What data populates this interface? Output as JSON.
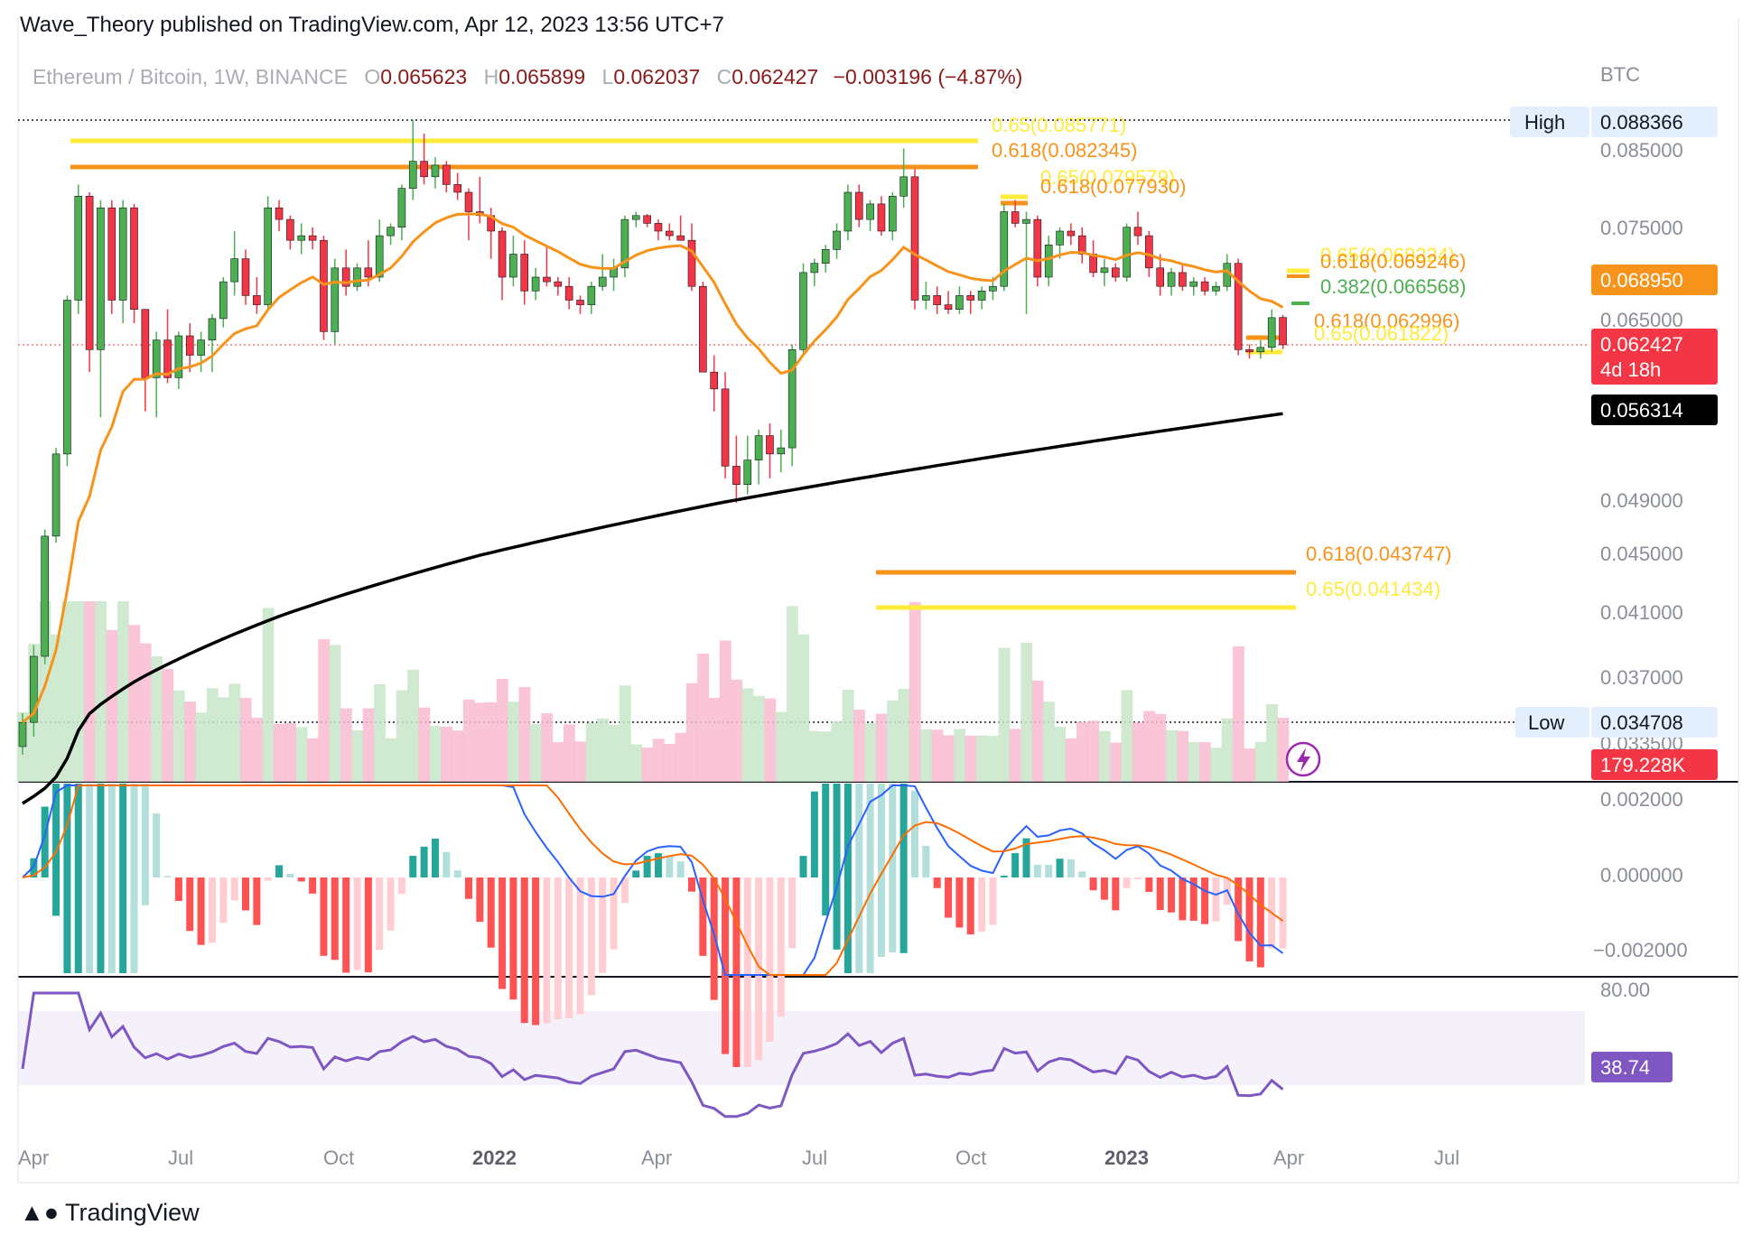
{
  "header": {
    "published": "Wave_Theory published on TradingView.com, Apr 12, 2023 13:56 UTC+7"
  },
  "legend": {
    "symbol": "Ethereum / Bitcoin, 1W, BINANCE",
    "o_label": "O",
    "o_value": "0.065623",
    "h_label": "H",
    "h_value": "0.065899",
    "l_label": "L",
    "l_value": "0.062037",
    "c_label": "C",
    "c_value": "0.062427",
    "change": "−0.003196 (−4.87%)"
  },
  "brand": {
    "name": "TradingView"
  },
  "colors": {
    "up": "#26a69a",
    "down": "#ef5350",
    "candle_up": "#4caf50",
    "candle_down": "#f23645",
    "ema": "#f7931a",
    "sma200": "#000000",
    "fib_gold": "#ffeb3b",
    "fib_orange": "#f7931a",
    "rsi": "#7e57c2",
    "macd": "#2962ff",
    "signal": "#ff6d00"
  },
  "chart_data": {
    "type": "candlestick",
    "title": "Ethereum / Bitcoin, 1W, BINANCE",
    "currency_label": "BTC",
    "price_axis_ticks": [
      "0.085000",
      "0.075000",
      "0.065000",
      "0.049000",
      "0.045000",
      "0.041000",
      "0.037000",
      "0.033500"
    ],
    "time_axis_labels": [
      {
        "label": "Apr",
        "bold": false
      },
      {
        "label": "Jul",
        "bold": false
      },
      {
        "label": "Oct",
        "bold": false
      },
      {
        "label": "2022",
        "bold": true
      },
      {
        "label": "Apr",
        "bold": false
      },
      {
        "label": "Jul",
        "bold": false
      },
      {
        "label": "Oct",
        "bold": false
      },
      {
        "label": "2023",
        "bold": true
      },
      {
        "label": "Apr",
        "bold": false
      },
      {
        "label": "Jul",
        "bold": false
      }
    ],
    "high": {
      "label": "High",
      "value": "0.088366"
    },
    "low": {
      "label": "Low",
      "value": "0.034708"
    },
    "last_price": {
      "value": "0.062427",
      "countdown": "4d 18h"
    },
    "ema_value": "0.068950",
    "sma200_value": "0.056314",
    "volume_value": "179.228K",
    "fib_levels": [
      {
        "text": "0.65(0.085771)",
        "color": "#ffeb3b"
      },
      {
        "text": "0.618(0.082345)",
        "color": "#f7931a"
      },
      {
        "text": "0.65(0.079579)",
        "color": "#ffeb3b"
      },
      {
        "text": "0.618(0.077930)",
        "color": "#f7931a"
      },
      {
        "text": "0.65(0.069224)",
        "color": "#ffeb3b"
      },
      {
        "text": "0.618(0.069246)",
        "color": "#f7931a"
      },
      {
        "text": "0.382(0.066568)",
        "color": "#4caf50"
      },
      {
        "text": "0.618(0.062996)",
        "color": "#f7931a"
      },
      {
        "text": "0.65(0.061822)",
        "color": "#ffeb3b"
      },
      {
        "text": "0.618(0.043747)",
        "color": "#f7931a"
      },
      {
        "text": "0.65(0.041434)",
        "color": "#ffeb3b"
      }
    ],
    "macd_axis_ticks": [
      "0.002000",
      "0.000000",
      "−0.002000"
    ],
    "rsi_axis_ticks": [
      "80.00"
    ],
    "rsi_value": "38.74",
    "candles": [
      {
        "o": 0.0335,
        "h": 0.0352,
        "l": 0.033,
        "c": 0.0347
      },
      {
        "o": 0.0347,
        "h": 0.0392,
        "l": 0.034,
        "c": 0.0385
      },
      {
        "o": 0.0385,
        "h": 0.047,
        "l": 0.038,
        "c": 0.0465
      },
      {
        "o": 0.0465,
        "h": 0.0535,
        "l": 0.046,
        "c": 0.053
      },
      {
        "o": 0.053,
        "h": 0.068,
        "l": 0.052,
        "c": 0.0675
      },
      {
        "o": 0.0675,
        "h": 0.081,
        "l": 0.066,
        "c": 0.0795
      },
      {
        "o": 0.0795,
        "h": 0.08,
        "l": 0.06,
        "c": 0.062
      },
      {
        "o": 0.062,
        "h": 0.079,
        "l": 0.056,
        "c": 0.078
      },
      {
        "o": 0.078,
        "h": 0.079,
        "l": 0.066,
        "c": 0.0675
      },
      {
        "o": 0.0675,
        "h": 0.079,
        "l": 0.065,
        "c": 0.078
      },
      {
        "o": 0.078,
        "h": 0.0785,
        "l": 0.065,
        "c": 0.0665
      },
      {
        "o": 0.0665,
        "h": 0.0665,
        "l": 0.0565,
        "c": 0.0595
      },
      {
        "o": 0.0595,
        "h": 0.064,
        "l": 0.056,
        "c": 0.063
      },
      {
        "o": 0.063,
        "h": 0.0665,
        "l": 0.059,
        "c": 0.0595
      },
      {
        "o": 0.0595,
        "h": 0.064,
        "l": 0.0585,
        "c": 0.0635
      },
      {
        "o": 0.0635,
        "h": 0.065,
        "l": 0.06,
        "c": 0.0615
      },
      {
        "o": 0.0615,
        "h": 0.064,
        "l": 0.06,
        "c": 0.063
      },
      {
        "o": 0.063,
        "h": 0.066,
        "l": 0.06,
        "c": 0.0655
      },
      {
        "o": 0.0655,
        "h": 0.07,
        "l": 0.0645,
        "c": 0.0695
      },
      {
        "o": 0.0695,
        "h": 0.075,
        "l": 0.068,
        "c": 0.072
      },
      {
        "o": 0.072,
        "h": 0.073,
        "l": 0.067,
        "c": 0.068
      },
      {
        "o": 0.068,
        "h": 0.07,
        "l": 0.066,
        "c": 0.067
      },
      {
        "o": 0.067,
        "h": 0.0795,
        "l": 0.0665,
        "c": 0.078
      },
      {
        "o": 0.078,
        "h": 0.079,
        "l": 0.075,
        "c": 0.0765
      },
      {
        "o": 0.0765,
        "h": 0.077,
        "l": 0.073,
        "c": 0.074
      },
      {
        "o": 0.074,
        "h": 0.076,
        "l": 0.0725,
        "c": 0.0745
      },
      {
        "o": 0.0745,
        "h": 0.0755,
        "l": 0.073,
        "c": 0.074
      },
      {
        "o": 0.074,
        "h": 0.0745,
        "l": 0.063,
        "c": 0.064
      },
      {
        "o": 0.064,
        "h": 0.072,
        "l": 0.0625,
        "c": 0.071
      },
      {
        "o": 0.071,
        "h": 0.073,
        "l": 0.068,
        "c": 0.069
      },
      {
        "o": 0.069,
        "h": 0.0715,
        "l": 0.0685,
        "c": 0.071
      },
      {
        "o": 0.071,
        "h": 0.074,
        "l": 0.069,
        "c": 0.07
      },
      {
        "o": 0.07,
        "h": 0.0765,
        "l": 0.0695,
        "c": 0.0745
      },
      {
        "o": 0.0745,
        "h": 0.076,
        "l": 0.0735,
        "c": 0.0755
      },
      {
        "o": 0.0755,
        "h": 0.081,
        "l": 0.074,
        "c": 0.0805
      },
      {
        "o": 0.0805,
        "h": 0.0885,
        "l": 0.079,
        "c": 0.084
      },
      {
        "o": 0.084,
        "h": 0.087,
        "l": 0.081,
        "c": 0.082
      },
      {
        "o": 0.082,
        "h": 0.0845,
        "l": 0.0805,
        "c": 0.0835
      },
      {
        "o": 0.0835,
        "h": 0.084,
        "l": 0.08,
        "c": 0.081
      },
      {
        "o": 0.081,
        "h": 0.0825,
        "l": 0.079,
        "c": 0.08
      },
      {
        "o": 0.08,
        "h": 0.0805,
        "l": 0.074,
        "c": 0.0775
      },
      {
        "o": 0.0775,
        "h": 0.082,
        "l": 0.076,
        "c": 0.077
      },
      {
        "o": 0.077,
        "h": 0.078,
        "l": 0.072,
        "c": 0.075
      },
      {
        "o": 0.075,
        "h": 0.0755,
        "l": 0.0675,
        "c": 0.07
      },
      {
        "o": 0.07,
        "h": 0.0745,
        "l": 0.069,
        "c": 0.0725
      },
      {
        "o": 0.0725,
        "h": 0.074,
        "l": 0.067,
        "c": 0.0685
      },
      {
        "o": 0.0685,
        "h": 0.071,
        "l": 0.0675,
        "c": 0.07
      },
      {
        "o": 0.07,
        "h": 0.0735,
        "l": 0.069,
        "c": 0.0695
      },
      {
        "o": 0.0695,
        "h": 0.07,
        "l": 0.068,
        "c": 0.069
      },
      {
        "o": 0.069,
        "h": 0.07,
        "l": 0.0665,
        "c": 0.0675
      },
      {
        "o": 0.0675,
        "h": 0.068,
        "l": 0.066,
        "c": 0.067
      },
      {
        "o": 0.067,
        "h": 0.0695,
        "l": 0.066,
        "c": 0.069
      },
      {
        "o": 0.069,
        "h": 0.0725,
        "l": 0.0685,
        "c": 0.07
      },
      {
        "o": 0.07,
        "h": 0.072,
        "l": 0.0685,
        "c": 0.071
      },
      {
        "o": 0.071,
        "h": 0.077,
        "l": 0.07,
        "c": 0.0765
      },
      {
        "o": 0.0765,
        "h": 0.0775,
        "l": 0.0755,
        "c": 0.077
      },
      {
        "o": 0.077,
        "h": 0.0772,
        "l": 0.0755,
        "c": 0.076
      },
      {
        "o": 0.076,
        "h": 0.0765,
        "l": 0.074,
        "c": 0.075
      },
      {
        "o": 0.075,
        "h": 0.076,
        "l": 0.074,
        "c": 0.0745
      },
      {
        "o": 0.0745,
        "h": 0.077,
        "l": 0.074,
        "c": 0.074
      },
      {
        "o": 0.074,
        "h": 0.076,
        "l": 0.0685,
        "c": 0.069
      },
      {
        "o": 0.069,
        "h": 0.0695,
        "l": 0.06,
        "c": 0.06
      },
      {
        "o": 0.06,
        "h": 0.0615,
        "l": 0.0565,
        "c": 0.0585
      },
      {
        "o": 0.0585,
        "h": 0.06,
        "l": 0.051,
        "c": 0.052
      },
      {
        "o": 0.052,
        "h": 0.0545,
        "l": 0.049,
        "c": 0.0505
      },
      {
        "o": 0.0505,
        "h": 0.0545,
        "l": 0.0497,
        "c": 0.0525
      },
      {
        "o": 0.0525,
        "h": 0.055,
        "l": 0.0505,
        "c": 0.0545
      },
      {
        "o": 0.0545,
        "h": 0.0555,
        "l": 0.051,
        "c": 0.053
      },
      {
        "o": 0.053,
        "h": 0.055,
        "l": 0.0515,
        "c": 0.0535
      },
      {
        "o": 0.0535,
        "h": 0.0625,
        "l": 0.052,
        "c": 0.062
      },
      {
        "o": 0.062,
        "h": 0.0715,
        "l": 0.0615,
        "c": 0.0705
      },
      {
        "o": 0.0705,
        "h": 0.072,
        "l": 0.069,
        "c": 0.0715
      },
      {
        "o": 0.0715,
        "h": 0.0735,
        "l": 0.0705,
        "c": 0.073
      },
      {
        "o": 0.073,
        "h": 0.076,
        "l": 0.072,
        "c": 0.075
      },
      {
        "o": 0.075,
        "h": 0.081,
        "l": 0.074,
        "c": 0.08
      },
      {
        "o": 0.08,
        "h": 0.081,
        "l": 0.0755,
        "c": 0.0765
      },
      {
        "o": 0.0765,
        "h": 0.079,
        "l": 0.075,
        "c": 0.0785
      },
      {
        "o": 0.0785,
        "h": 0.0795,
        "l": 0.0745,
        "c": 0.075
      },
      {
        "o": 0.075,
        "h": 0.08,
        "l": 0.074,
        "c": 0.0795
      },
      {
        "o": 0.0795,
        "h": 0.0855,
        "l": 0.078,
        "c": 0.082
      },
      {
        "o": 0.082,
        "h": 0.083,
        "l": 0.0665,
        "c": 0.0675
      },
      {
        "o": 0.0675,
        "h": 0.0695,
        "l": 0.0665,
        "c": 0.068
      },
      {
        "o": 0.068,
        "h": 0.069,
        "l": 0.066,
        "c": 0.067
      },
      {
        "o": 0.067,
        "h": 0.0685,
        "l": 0.066,
        "c": 0.0665
      },
      {
        "o": 0.0665,
        "h": 0.069,
        "l": 0.066,
        "c": 0.068
      },
      {
        "o": 0.068,
        "h": 0.0685,
        "l": 0.066,
        "c": 0.0675
      },
      {
        "o": 0.0675,
        "h": 0.069,
        "l": 0.0665,
        "c": 0.0685
      },
      {
        "o": 0.0685,
        "h": 0.07,
        "l": 0.0675,
        "c": 0.069
      },
      {
        "o": 0.069,
        "h": 0.0785,
        "l": 0.0685,
        "c": 0.0775
      },
      {
        "o": 0.0775,
        "h": 0.079,
        "l": 0.0755,
        "c": 0.076
      },
      {
        "o": 0.076,
        "h": 0.0775,
        "l": 0.066,
        "c": 0.0765
      },
      {
        "o": 0.0765,
        "h": 0.077,
        "l": 0.069,
        "c": 0.07
      },
      {
        "o": 0.07,
        "h": 0.0745,
        "l": 0.069,
        "c": 0.0735
      },
      {
        "o": 0.0735,
        "h": 0.0755,
        "l": 0.072,
        "c": 0.075
      },
      {
        "o": 0.075,
        "h": 0.076,
        "l": 0.0735,
        "c": 0.0745
      },
      {
        "o": 0.0745,
        "h": 0.0755,
        "l": 0.0715,
        "c": 0.0725
      },
      {
        "o": 0.0725,
        "h": 0.074,
        "l": 0.07,
        "c": 0.0705
      },
      {
        "o": 0.0705,
        "h": 0.072,
        "l": 0.069,
        "c": 0.071
      },
      {
        "o": 0.071,
        "h": 0.0715,
        "l": 0.0695,
        "c": 0.07
      },
      {
        "o": 0.07,
        "h": 0.076,
        "l": 0.0695,
        "c": 0.0755
      },
      {
        "o": 0.0755,
        "h": 0.0775,
        "l": 0.0735,
        "c": 0.0745
      },
      {
        "o": 0.0745,
        "h": 0.075,
        "l": 0.07,
        "c": 0.071
      },
      {
        "o": 0.071,
        "h": 0.0725,
        "l": 0.068,
        "c": 0.069
      },
      {
        "o": 0.069,
        "h": 0.071,
        "l": 0.068,
        "c": 0.0705
      },
      {
        "o": 0.0705,
        "h": 0.0715,
        "l": 0.0685,
        "c": 0.069
      },
      {
        "o": 0.069,
        "h": 0.07,
        "l": 0.068,
        "c": 0.0695
      },
      {
        "o": 0.0695,
        "h": 0.07,
        "l": 0.068,
        "c": 0.0685
      },
      {
        "o": 0.0685,
        "h": 0.0695,
        "l": 0.068,
        "c": 0.069
      },
      {
        "o": 0.069,
        "h": 0.0725,
        "l": 0.0685,
        "c": 0.0715
      },
      {
        "o": 0.0715,
        "h": 0.072,
        "l": 0.0615,
        "c": 0.062
      },
      {
        "o": 0.062,
        "h": 0.0625,
        "l": 0.0612,
        "c": 0.0618
      },
      {
        "o": 0.0618,
        "h": 0.063,
        "l": 0.0612,
        "c": 0.0622
      },
      {
        "o": 0.0622,
        "h": 0.0665,
        "l": 0.0618,
        "c": 0.0656
      },
      {
        "o": 0.065623,
        "h": 0.065899,
        "l": 0.062037,
        "c": 0.062427
      }
    ]
  }
}
